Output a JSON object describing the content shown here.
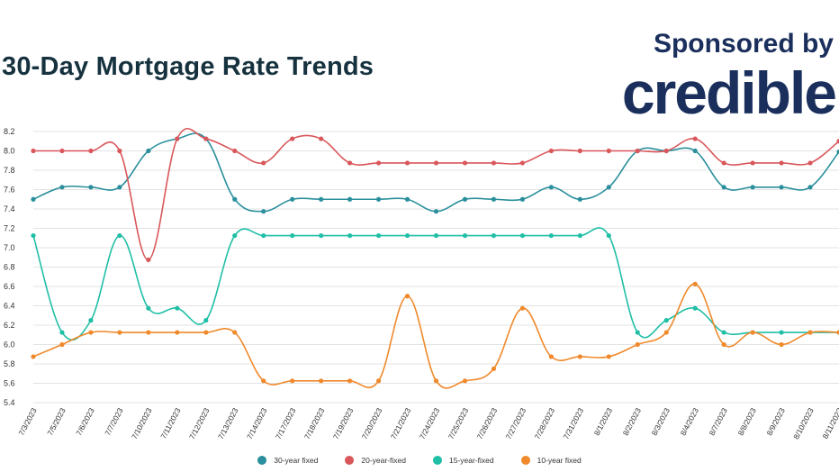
{
  "header": {
    "title": "30-Day Mortgage Rate Trends",
    "sponsor_label": "Sponsored by",
    "sponsor_brand": "credible"
  },
  "chart_data": {
    "type": "line",
    "title": "30-Day Mortgage Rate Trends",
    "xlabel": "",
    "ylabel": "",
    "ylim": [
      5.4,
      8.2
    ],
    "yticks": [
      "8.2",
      "8.0",
      "7.8",
      "7.6",
      "7.4",
      "7.2",
      "7.0",
      "6.8",
      "6.6",
      "6.4",
      "6.2",
      "6.0",
      "5.8",
      "5.6",
      "5.4"
    ],
    "grid": true,
    "legend_position": "bottom",
    "x": [
      "7/3/2023",
      "7/5/2023",
      "7/6/2023",
      "7/7/2023",
      "7/10/2023",
      "7/11/2023",
      "7/12/2023",
      "7/13/2023",
      "7/14/2023",
      "7/17/2023",
      "7/18/2023",
      "7/19/2023",
      "7/20/2023",
      "7/21/2023",
      "7/24/2023",
      "7/25/2023",
      "7/26/2023",
      "7/27/2023",
      "7/28/2023",
      "7/31/2023",
      "8/1/2023",
      "8/2/2023",
      "8/3/2023",
      "8/4/2023",
      "8/7/2023",
      "8/8/2023",
      "8/9/2023",
      "8/10/2023",
      "8/11/2023"
    ],
    "series": [
      {
        "name": "30-year fixed",
        "color": "#2a8f9c",
        "values": [
          7.5,
          7.625,
          7.625,
          7.625,
          8.0,
          8.125,
          8.125,
          7.5,
          7.375,
          7.5,
          7.5,
          7.5,
          7.5,
          7.5,
          7.375,
          7.5,
          7.5,
          7.5,
          7.625,
          7.5,
          7.625,
          8.0,
          8.0,
          8.0,
          7.625,
          7.625,
          7.625,
          7.625,
          7.99
        ]
      },
      {
        "name": "20-year-fixed",
        "color": "#d9575b",
        "values": [
          8.0,
          8.0,
          8.0,
          8.0,
          6.875,
          8.125,
          8.125,
          8.0,
          7.875,
          8.125,
          8.125,
          7.875,
          7.875,
          7.875,
          7.875,
          7.875,
          7.875,
          7.875,
          8.0,
          8.0,
          8.0,
          8.0,
          8.0,
          8.125,
          7.875,
          7.875,
          7.875,
          7.875,
          8.1
        ]
      },
      {
        "name": "15-year-fixed",
        "color": "#1fbfa6",
        "values": [
          7.125,
          6.125,
          6.25,
          7.125,
          6.375,
          6.375,
          6.25,
          7.125,
          7.125,
          7.125,
          7.125,
          7.125,
          7.125,
          7.125,
          7.125,
          7.125,
          7.125,
          7.125,
          7.125,
          7.125,
          7.125,
          6.125,
          6.25,
          6.375,
          6.125,
          6.125,
          6.125,
          6.125,
          6.125
        ]
      },
      {
        "name": "10-year fixed",
        "color": "#f0892b",
        "values": [
          5.875,
          6.0,
          6.125,
          6.125,
          6.125,
          6.125,
          6.125,
          6.125,
          5.625,
          5.625,
          5.625,
          5.625,
          5.625,
          6.5,
          5.625,
          5.625,
          5.75,
          6.375,
          5.875,
          5.875,
          5.875,
          6.0,
          6.125,
          6.625,
          6.0,
          6.125,
          6.0,
          6.125,
          6.125
        ]
      }
    ]
  }
}
